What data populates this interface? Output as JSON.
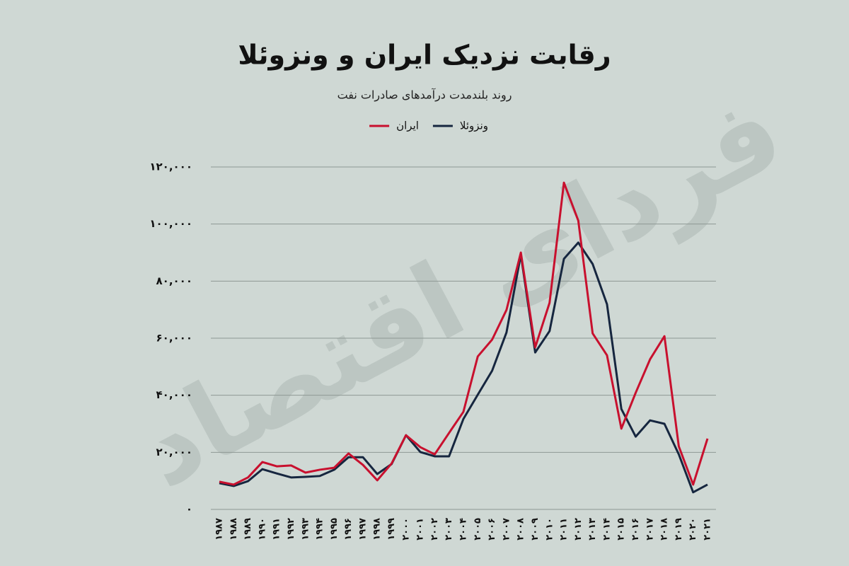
{
  "chart_data": {
    "type": "line",
    "title": "رقابت نزدیک ایران و ونزوئلا",
    "subtitle": "روند بلندمدت درآمدهای صادرات نفت",
    "watermark": "فردای اقتصاد",
    "categories": [
      "۱۹۸۷",
      "۱۹۸۸",
      "۱۹۸۹",
      "۱۹۹۰",
      "۱۹۹۱",
      "۱۹۹۲",
      "۱۹۹۳",
      "۱۹۹۴",
      "۱۹۹۵",
      "۱۹۹۶",
      "۱۹۹۷",
      "۱۹۹۸",
      "۱۹۹۹",
      "۲۰۰۰",
      "۲۰۰۱",
      "۲۰۰۲",
      "۲۰۰۳",
      "۲۰۰۴",
      "۲۰۰۵",
      "۲۰۰۶",
      "۲۰۰۷",
      "۲۰۰۸",
      "۲۰۰۹",
      "۲۰۱۰",
      "۲۰۱۱",
      "۲۰۱۲",
      "۲۰۱۳",
      "۲۰۱۴",
      "۲۰۱۵",
      "۲۰۱۶",
      "۲۰۱۷",
      "۲۰۱۸",
      "۲۰۱۹",
      "۲۰۲۰",
      "۲۰۲۱"
    ],
    "series": [
      {
        "name": "ونزوئلا",
        "color": "#16263f",
        "values": [
          9200,
          8200,
          9900,
          14100,
          12600,
          11200,
          11400,
          11700,
          13900,
          18300,
          18300,
          12400,
          15900,
          26000,
          20100,
          18600,
          18600,
          31700,
          40200,
          48600,
          62000,
          89300,
          55000,
          62500,
          87800,
          93500,
          86000,
          71900,
          35200,
          25500,
          31200,
          30000,
          19300,
          6000,
          8700
        ]
      },
      {
        "name": "ایران",
        "color": "#c8102e",
        "values": [
          9700,
          8700,
          11200,
          16600,
          15100,
          15400,
          12900,
          13900,
          14600,
          19600,
          15600,
          10200,
          16100,
          26000,
          21800,
          19300,
          26800,
          34200,
          53600,
          59500,
          69900,
          90000,
          56800,
          72400,
          114500,
          101200,
          61700,
          54000,
          28300,
          40900,
          52600,
          60700,
          22100,
          8700,
          24800
        ]
      }
    ],
    "ylim": [
      0,
      120000
    ],
    "yticks": [
      {
        "value": 0,
        "label": "۰"
      },
      {
        "value": 20000,
        "label": "۲۰,۰۰۰"
      },
      {
        "value": 40000,
        "label": "۴۰,۰۰۰"
      },
      {
        "value": 60000,
        "label": "۶۰,۰۰۰"
      },
      {
        "value": 80000,
        "label": "۸۰,۰۰۰"
      },
      {
        "value": 100000,
        "label": "۱۰۰,۰۰۰"
      },
      {
        "value": 120000,
        "label": "۱۲۰,۰۰۰"
      }
    ],
    "grid": true
  }
}
